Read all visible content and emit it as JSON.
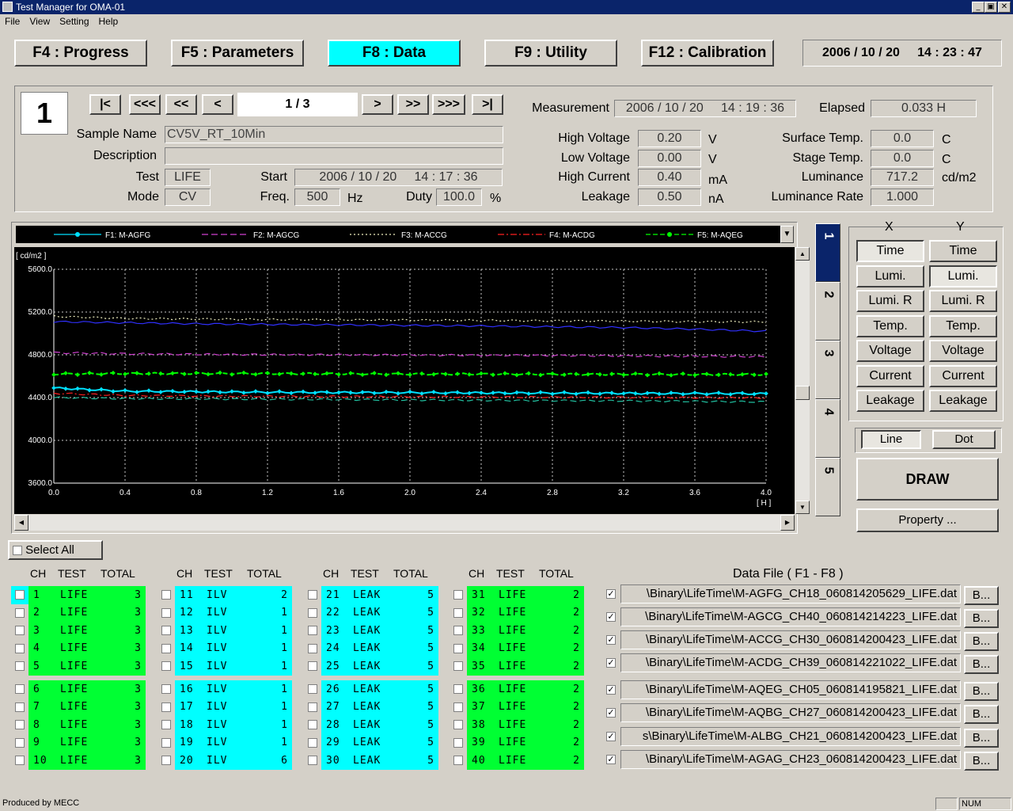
{
  "window": {
    "title": "Test Manager for OMA-01"
  },
  "menu": [
    "File",
    "View",
    "Setting",
    "Help"
  ],
  "fkeys": [
    {
      "label": "F4 : Progress",
      "active": false
    },
    {
      "label": "F5 : Parameters",
      "active": false
    },
    {
      "label": "F8 : Data",
      "active": true
    },
    {
      "label": "F9 : Utility",
      "active": false
    },
    {
      "label": "F12 : Calibration",
      "active": false
    }
  ],
  "clock": "2006 / 10 / 20     14 : 23 : 47",
  "sample": {
    "number": "1",
    "nav": {
      "first": "|<",
      "back3": "<<<",
      "back2": "<<",
      "back1": "<",
      "page": "1 / 3",
      "fwd1": ">",
      "fwd2": ">>",
      "fwd3": ">>>",
      "last": ">|"
    },
    "labels": {
      "name": "Sample Name",
      "description": "Description",
      "test": "Test",
      "mode": "Mode",
      "start": "Start",
      "freq": "Freq.",
      "duty": "Duty"
    },
    "name": "CV5V_RT_10Min",
    "description": "",
    "test": "LIFE",
    "mode": "CV",
    "start": "2006 / 10 / 20     14 : 17 : 36",
    "freq": "500",
    "freq_unit": "Hz",
    "duty": "100.0",
    "duty_unit": "%"
  },
  "measurement": {
    "labels": {
      "measurement": "Measurement",
      "elapsed": "Elapsed",
      "high_voltage": "High Voltage",
      "low_voltage": "Low Voltage",
      "high_current": "High Current",
      "leakage": "Leakage",
      "surface_temp": "Surface Temp.",
      "stage_temp": "Stage Temp.",
      "luminance": "Luminance",
      "luminance_rate": "Luminance Rate"
    },
    "measurement": "2006 / 10 / 20     14 : 19 : 36",
    "elapsed": "0.033 H",
    "high_voltage": "0.20",
    "high_voltage_unit": "V",
    "low_voltage": "0.00",
    "low_voltage_unit": "V",
    "high_current": "0.40",
    "high_current_unit": "mA",
    "leakage": "0.50",
    "leakage_unit": "nA",
    "surface_temp": "0.0",
    "surface_temp_unit": "C",
    "stage_temp": "0.0",
    "stage_temp_unit": "C",
    "luminance": "717.2",
    "luminance_unit": "cd/m2",
    "luminance_rate": "1.000"
  },
  "colors": {
    "grid": "#c8c8c8",
    "bg": "#000000",
    "accent": "#00ffff",
    "life": "#00ff33"
  },
  "chart_data": {
    "type": "line",
    "ylabel": "[ cd/m2 ]",
    "xlabel": "[ H ]",
    "xlim": [
      0,
      4.0
    ],
    "ylim": [
      3600,
      5600
    ],
    "x_ticks": [
      "0.0",
      "0.4",
      "0.8",
      "1.2",
      "1.6",
      "2.0",
      "2.4",
      "2.8",
      "3.2",
      "3.6",
      "4.0"
    ],
    "y_ticks": [
      "5600.0",
      "5200.0",
      "4800.0",
      "4400.0",
      "4000.0",
      "3600.0"
    ],
    "x": [
      0.0,
      0.4,
      0.8,
      1.2,
      1.6,
      2.0,
      2.4,
      2.8,
      3.2,
      3.6,
      4.0
    ],
    "series": [
      {
        "name": "F1: M-AGFG",
        "color": "#00e0ff",
        "style": "solid-marker",
        "values": [
          4490,
          4460,
          4455,
          4450,
          4448,
          4446,
          4444,
          4442,
          4440,
          4438,
          4436
        ]
      },
      {
        "name": "F2: M-AGCG",
        "color": "#d040d0",
        "style": "dash",
        "values": [
          4820,
          4810,
          4805,
          4802,
          4800,
          4798,
          4796,
          4794,
          4790,
          4786,
          4782
        ]
      },
      {
        "name": "F3: M-ACCG",
        "color": "#f0f0c0",
        "style": "dot",
        "values": [
          5160,
          5140,
          5135,
          5130,
          5128,
          5125,
          5122,
          5118,
          5115,
          5110,
          5108
        ]
      },
      {
        "name": "F4: M-ACDG",
        "color": "#ff2020",
        "style": "dashdot",
        "values": [
          4440,
          4420,
          4415,
          4412,
          4410,
          4408,
          4406,
          4404,
          4402,
          4400,
          4398
        ]
      },
      {
        "name": "F5: M-AQEG",
        "color": "#00ff00",
        "style": "dash-marker",
        "values": [
          4620,
          4625,
          4625,
          4624,
          4622,
          4620,
          4620,
          4618,
          4618,
          4616,
          4616
        ]
      },
      {
        "name": "",
        "color": "#3030ff",
        "style": "solid",
        "values": [
          5110,
          5100,
          5090,
          5085,
          5080,
          5075,
          5070,
          5062,
          5055,
          5040,
          5020
        ]
      },
      {
        "name": "",
        "color": "#20c0a0",
        "style": "dash",
        "values": [
          4400,
          4390,
          4388,
          4385,
          4382,
          4378,
          4375,
          4372,
          4370,
          4365,
          4360
        ]
      }
    ]
  },
  "chart_tabs": [
    "1",
    "2",
    "3",
    "4",
    "5"
  ],
  "axes": {
    "x_label": "X",
    "y_label": "Y",
    "options": [
      "Time",
      "Lumi.",
      "Lumi.  R",
      "Temp.",
      "Voltage",
      "Current",
      "Leakage"
    ],
    "x_selected": 0,
    "y_selected": 1
  },
  "plot_style": {
    "line": "Line",
    "dot": "Dot"
  },
  "draw": "DRAW",
  "property": "Property ...",
  "select_all": "Select All",
  "channel_headers": {
    "ch": "CH",
    "test": "TEST",
    "total": "TOTAL"
  },
  "channels": [
    [
      [
        "1",
        "LIFE",
        "3"
      ],
      [
        "2",
        "LIFE",
        "3"
      ],
      [
        "3",
        "LIFE",
        "3"
      ],
      [
        "4",
        "LIFE",
        "3"
      ],
      [
        "5",
        "LIFE",
        "3"
      ],
      [
        "6",
        "LIFE",
        "3"
      ],
      [
        "7",
        "LIFE",
        "3"
      ],
      [
        "8",
        "LIFE",
        "3"
      ],
      [
        "9",
        "LIFE",
        "3"
      ],
      [
        "10",
        "LIFE",
        "3"
      ]
    ],
    [
      [
        "11",
        "ILV",
        "2"
      ],
      [
        "12",
        "ILV",
        "1"
      ],
      [
        "13",
        "ILV",
        "1"
      ],
      [
        "14",
        "ILV",
        "1"
      ],
      [
        "15",
        "ILV",
        "1"
      ],
      [
        "16",
        "ILV",
        "1"
      ],
      [
        "17",
        "ILV",
        "1"
      ],
      [
        "18",
        "ILV",
        "1"
      ],
      [
        "19",
        "ILV",
        "1"
      ],
      [
        "20",
        "ILV",
        "6"
      ]
    ],
    [
      [
        "21",
        "LEAK",
        "5"
      ],
      [
        "22",
        "LEAK",
        "5"
      ],
      [
        "23",
        "LEAK",
        "5"
      ],
      [
        "24",
        "LEAK",
        "5"
      ],
      [
        "25",
        "LEAK",
        "5"
      ],
      [
        "26",
        "LEAK",
        "5"
      ],
      [
        "27",
        "LEAK",
        "5"
      ],
      [
        "28",
        "LEAK",
        "5"
      ],
      [
        "29",
        "LEAK",
        "5"
      ],
      [
        "30",
        "LEAK",
        "5"
      ]
    ],
    [
      [
        "31",
        "LIFE",
        "2"
      ],
      [
        "32",
        "LIFE",
        "2"
      ],
      [
        "33",
        "LIFE",
        "2"
      ],
      [
        "34",
        "LIFE",
        "2"
      ],
      [
        "35",
        "LIFE",
        "2"
      ],
      [
        "36",
        "LIFE",
        "2"
      ],
      [
        "37",
        "LIFE",
        "2"
      ],
      [
        "38",
        "LIFE",
        "2"
      ],
      [
        "39",
        "LIFE",
        "2"
      ],
      [
        "40",
        "LIFE",
        "2"
      ]
    ]
  ],
  "data_files": {
    "title": "Data File  ( F1 - F8 )",
    "button": "B...",
    "files": [
      "\\Binary\\LifeTime\\M-AGFG_CH18_060814205629_LIFE.dat",
      "\\Binary\\LifeTime\\M-AGCG_CH40_060814214223_LIFE.dat",
      "\\Binary\\LifeTime\\M-ACCG_CH30_060814200423_LIFE.dat",
      "\\Binary\\LifeTime\\M-ACDG_CH39_060814221022_LIFE.dat",
      "\\Binary\\LifeTime\\M-AQEG_CH05_060814195821_LIFE.dat",
      "\\Binary\\LifeTime\\M-AQBG_CH27_060814200423_LIFE.dat",
      "s\\Binary\\LifeTime\\M-ALBG_CH21_060814200423_LIFE.dat",
      "\\Binary\\LifeTime\\M-AGAG_CH23_060814200423_LIFE.dat"
    ]
  },
  "status": {
    "left": "Produced by MECC",
    "num": "NUM"
  }
}
